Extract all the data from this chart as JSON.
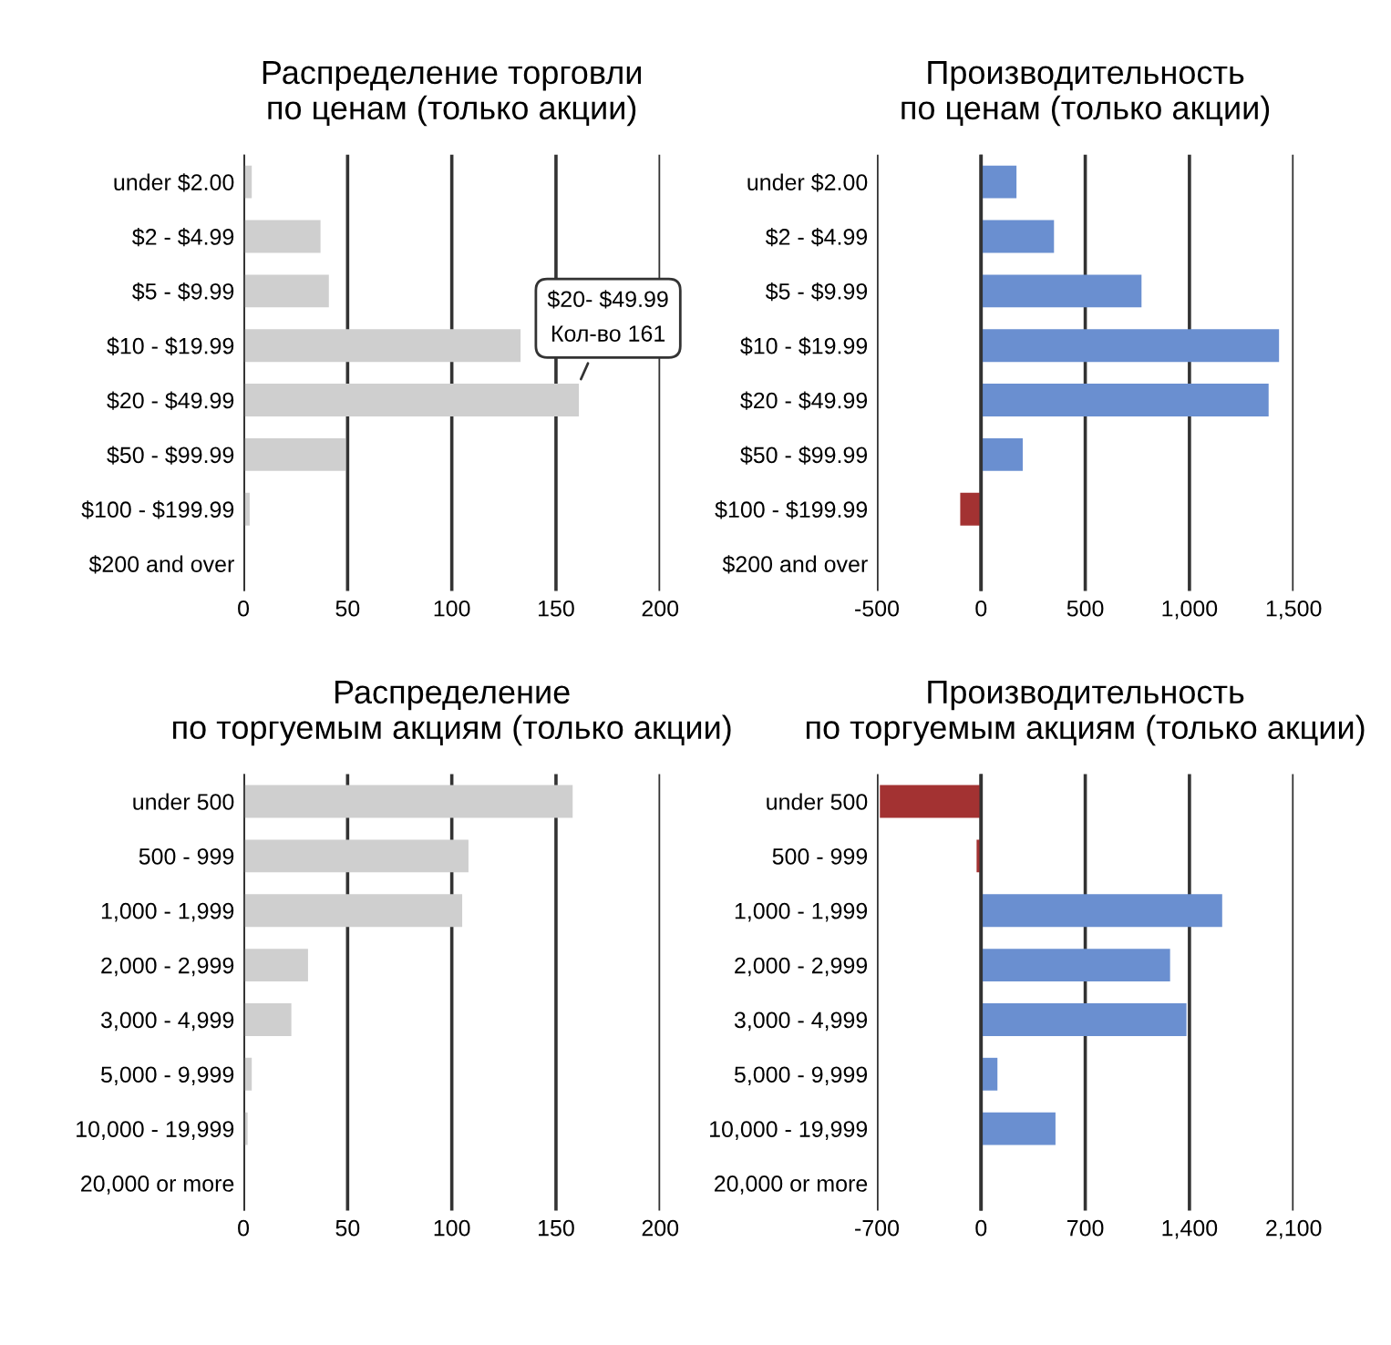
{
  "chart_data": [
    {
      "type": "bar",
      "orientation": "horizontal",
      "title": "Распределение торговли\nпо ценам (только акции)",
      "categories": [
        "under $2.00",
        "$2 - $4.99",
        "$5 - $9.99",
        "$10 - $19.99",
        "$20 - $49.99",
        "$50 - $99.99",
        "$100 - $199.99",
        "$200 and over"
      ],
      "values": [
        4,
        37,
        41,
        133,
        161,
        49,
        3,
        0
      ],
      "color": "#cfcfcf",
      "xlim": [
        0,
        200
      ],
      "xticks": [
        0,
        50,
        100,
        150,
        200
      ],
      "grid": "x",
      "annotations": [
        {
          "text": "$20- $49.99\nКол-во 161",
          "x": 161,
          "y": "$20 - $49.99"
        }
      ]
    },
    {
      "type": "bar",
      "orientation": "horizontal",
      "title": "Производительность\nпо ценам (только акции)",
      "categories": [
        "under $2.00",
        "$2 - $4.99",
        "$5 - $9.99",
        "$10 - $19.99",
        "$20 - $49.99",
        "$50 - $99.99",
        "$100 - $199.99",
        "$200 and over"
      ],
      "values": [
        170,
        350,
        770,
        1430,
        1380,
        200,
        -100,
        0
      ],
      "colors": [
        "#6a8fd0",
        "#6a8fd0",
        "#6a8fd0",
        "#6a8fd0",
        "#6a8fd0",
        "#6a8fd0",
        "#a33232",
        "#6a8fd0"
      ],
      "xlim": [
        -500,
        1500
      ],
      "xticks": [
        {
          "value": -500,
          "label": "-500"
        },
        0,
        500,
        {
          "value": 1000,
          "label": "1,000"
        },
        {
          "value": 1500,
          "label": "1,500"
        }
      ],
      "grid": "x"
    },
    {
      "type": "bar",
      "orientation": "horizontal",
      "title": "Распределение\nпо торгуемым акциям (только акции)",
      "categories": [
        "under 500",
        "500 - 999",
        "1,000 - 1,999",
        "2,000 - 2,999",
        "3,000 - 4,999",
        "5,000 - 9,999",
        "10,000 - 19,999",
        "20,000 or more"
      ],
      "values": [
        158,
        108,
        105,
        31,
        23,
        4,
        2,
        0
      ],
      "color": "#cfcfcf",
      "xlim": [
        0,
        200
      ],
      "xticks": [
        0,
        50,
        100,
        150,
        200
      ],
      "grid": "x"
    },
    {
      "type": "bar",
      "orientation": "horizontal",
      "title": "Производительность\nпо торгуемым акциям (только акции)",
      "categories": [
        "under 500",
        "500 - 999",
        "1,000 - 1,999",
        "2,000 - 2,999",
        "3,000 - 4,999",
        "5,000 - 9,999",
        "10,000 - 19,999",
        "20,000 or more"
      ],
      "values": [
        -680,
        -30,
        1620,
        1270,
        1380,
        110,
        500,
        0
      ],
      "colors": [
        "#a33232",
        "#a33232",
        "#6a8fd0",
        "#6a8fd0",
        "#6a8fd0",
        "#6a8fd0",
        "#6a8fd0",
        "#6a8fd0"
      ],
      "xlim": [
        -700,
        2100
      ],
      "xticks": [
        {
          "value": -700,
          "label": "-700"
        },
        0,
        700,
        {
          "value": 1400,
          "label": "1,400"
        },
        {
          "value": 2100,
          "label": "2,100"
        }
      ],
      "grid": "x"
    }
  ]
}
